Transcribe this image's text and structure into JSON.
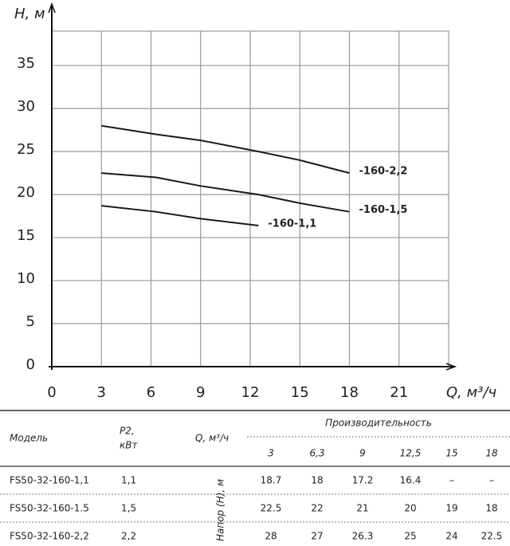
{
  "chart_data": {
    "type": "line",
    "y_label": "H, м",
    "x_label": "Q, м³/ч",
    "x": [
      3,
      6.3,
      9,
      12.5,
      15,
      18
    ],
    "series": [
      {
        "name": "-160-1,1",
        "color": "#1a1a1a",
        "values": [
          18.7,
          18,
          17.2,
          16.4,
          null,
          null
        ]
      },
      {
        "name": "-160-1,5",
        "color": "#1a1a1a",
        "values": [
          22.5,
          22,
          21,
          20,
          19,
          18
        ]
      },
      {
        "name": "-160-2,2",
        "color": "#1a1a1a",
        "values": [
          28,
          27,
          26.3,
          25,
          24,
          22.5
        ]
      }
    ],
    "xlim": [
      0,
      24
    ],
    "xticks": [
      0,
      3,
      6,
      9,
      12,
      15,
      18,
      21
    ],
    "ylim": [
      0,
      39
    ],
    "yticks": [
      0,
      5,
      10,
      15,
      20,
      25,
      30,
      35
    ],
    "grid": true
  },
  "table": {
    "header": {
      "model": "Модель",
      "p2": "P2,",
      "p2_unit": "кВт",
      "q": "Q, м³/ч",
      "group": "Производительность",
      "q_values": [
        "3",
        "6,3",
        "9",
        "12,5",
        "15",
        "18"
      ],
      "row_label": "Напор (Н), м"
    },
    "rows": [
      [
        "FS50-32-160-1,1",
        "1,1",
        "18.7",
        "18",
        "17.2",
        "16.4",
        "–",
        "–"
      ],
      [
        "FS50-32-160-1.5",
        "1,5",
        "22.5",
        "22",
        "21",
        "20",
        "19",
        "18"
      ],
      [
        "FS50-32-160-2,2",
        "2,2",
        "28",
        "27",
        "26.3",
        "25",
        "24",
        "22.5"
      ]
    ]
  }
}
